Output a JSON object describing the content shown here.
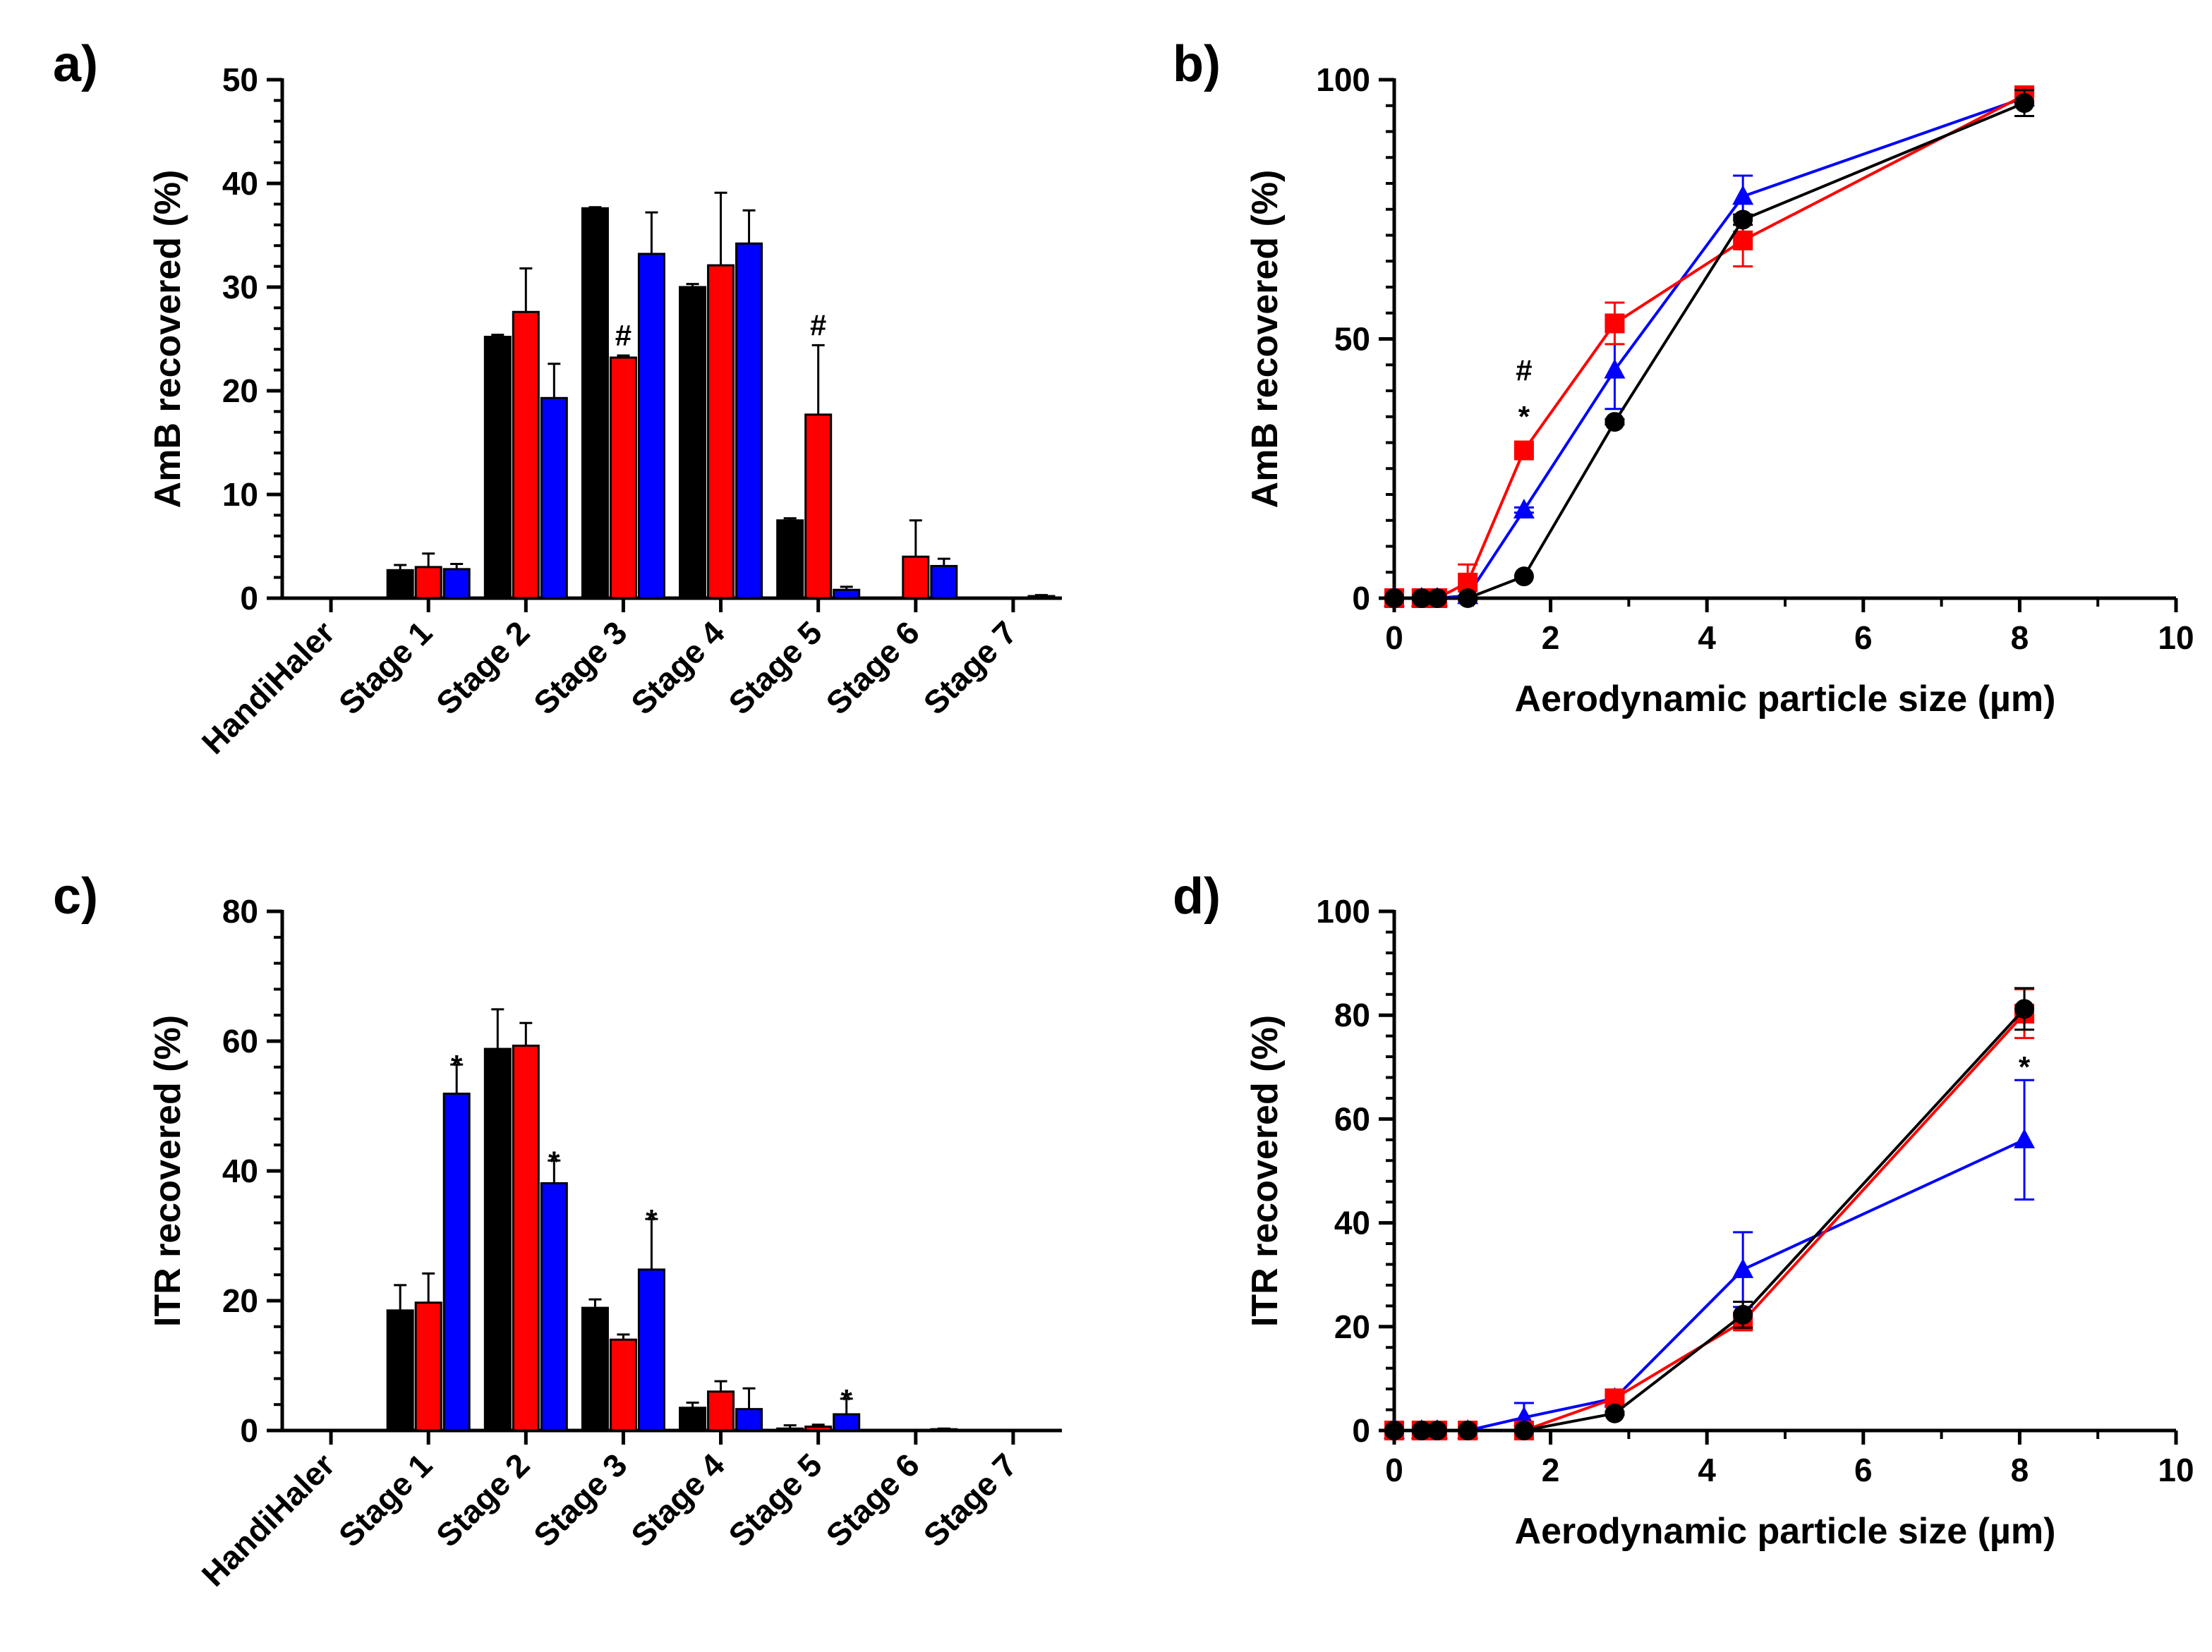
{
  "colors": {
    "series1": "#000000",
    "series2": "#ff0000",
    "series3": "#0000ff"
  },
  "chart_data": [
    {
      "panel": "a)",
      "type": "bar",
      "xlabel": "",
      "ylabel": "AmB recovered (%)",
      "ylim": [
        0,
        50
      ],
      "yticks": [
        0,
        10,
        20,
        30,
        40,
        50
      ],
      "categories": [
        "HandiHaler",
        "Stage 1",
        "Stage 2",
        "Stage 3",
        "Stage 4",
        "Stage 5",
        "Stage 6",
        "Stage 7"
      ],
      "series": [
        {
          "name": "black",
          "color": "#000000",
          "values": [
            0,
            2.7,
            25.2,
            37.6,
            30.0,
            7.5,
            0,
            0
          ],
          "errors": [
            0,
            0.5,
            0.2,
            0.1,
            0.3,
            0.2,
            0,
            0
          ]
        },
        {
          "name": "red",
          "color": "#ff0000",
          "values": [
            0,
            3.0,
            27.6,
            23.2,
            32.1,
            17.7,
            4.0,
            0
          ],
          "errors": [
            0,
            1.3,
            4.2,
            0.2,
            7.0,
            6.7,
            3.5,
            0
          ]
        },
        {
          "name": "blue",
          "color": "#0000ff",
          "values": [
            0,
            2.8,
            19.3,
            33.2,
            34.2,
            0.8,
            3.1,
            0.2
          ],
          "errors": [
            0,
            0.5,
            3.3,
            4.0,
            3.2,
            0.3,
            0.7,
            0.1
          ]
        }
      ],
      "annotations": [
        {
          "category": "Stage 3",
          "series": 1,
          "text": "#"
        },
        {
          "category": "Stage 5",
          "series": 1,
          "text": "#"
        }
      ]
    },
    {
      "panel": "b)",
      "type": "line",
      "xlabel": "Aerodynamic particle size (µm)",
      "ylabel": "AmB recovered (%)",
      "xlim": [
        0,
        10
      ],
      "ylim": [
        0,
        100
      ],
      "xticks": [
        0,
        2,
        4,
        6,
        8,
        10
      ],
      "yticks": [
        0,
        50,
        100
      ],
      "series": [
        {
          "name": "black",
          "color": "#000000",
          "marker": "circle",
          "x": [
            0,
            0.35,
            0.55,
            0.94,
            1.66,
            2.82,
            4.46,
            8.06
          ],
          "y": [
            0,
            0,
            0,
            0,
            4.2,
            34,
            73,
            95.5
          ],
          "errors": [
            0,
            0,
            0,
            0,
            0,
            0.5,
            1,
            2.5
          ]
        },
        {
          "name": "red",
          "color": "#ff0000",
          "marker": "square",
          "x": [
            0,
            0.35,
            0.55,
            0.94,
            1.66,
            2.82,
            4.46,
            8.06
          ],
          "y": [
            0,
            0,
            0,
            3,
            28.5,
            53,
            69,
            97
          ],
          "errors": [
            0,
            0,
            0,
            3.5,
            1,
            4,
            5,
            1.2
          ]
        },
        {
          "name": "blue",
          "color": "#0000ff",
          "marker": "triangle",
          "x": [
            0,
            0.35,
            0.55,
            0.94,
            1.66,
            2.82,
            4.46,
            8.06
          ],
          "y": [
            0,
            0,
            0,
            0.5,
            17,
            44,
            77.5,
            96.5
          ],
          "errors": [
            0,
            0,
            0,
            0,
            0.5,
            7.5,
            4,
            0.8
          ]
        }
      ],
      "annotations": [
        {
          "x": 1.66,
          "y": 42,
          "text": "#"
        },
        {
          "x": 1.66,
          "y": 35,
          "text": "*"
        }
      ]
    },
    {
      "panel": "c)",
      "type": "bar",
      "xlabel": "",
      "ylabel": "ITR recovered (%)",
      "ylim": [
        0,
        80
      ],
      "yticks": [
        0,
        20,
        40,
        60,
        80
      ],
      "categories": [
        "HandiHaler",
        "Stage 1",
        "Stage 2",
        "Stage 3",
        "Stage 4",
        "Stage 5",
        "Stage 6",
        "Stage 7"
      ],
      "series": [
        {
          "name": "black",
          "color": "#000000",
          "values": [
            0,
            18.5,
            58.8,
            18.9,
            3.5,
            0.3,
            0,
            0
          ],
          "errors": [
            0,
            3.9,
            6.1,
            1.3,
            0.8,
            0.5,
            0,
            0
          ]
        },
        {
          "name": "red",
          "color": "#ff0000",
          "values": [
            0,
            19.7,
            59.3,
            14.0,
            6.0,
            0.6,
            0,
            0
          ],
          "errors": [
            0,
            4.5,
            3.5,
            0.8,
            1.6,
            0.3,
            0,
            0
          ]
        },
        {
          "name": "blue",
          "color": "#0000ff",
          "values": [
            0,
            51.9,
            38.1,
            24.8,
            3.3,
            2.5,
            0.2,
            0
          ],
          "errors": [
            0,
            4.5,
            3.5,
            7.8,
            3.2,
            2.4,
            0.1,
            0
          ]
        }
      ],
      "annotations": [
        {
          "category": "Stage 1",
          "series": 2,
          "text": "*"
        },
        {
          "category": "Stage 2",
          "series": 2,
          "text": "*"
        },
        {
          "category": "Stage 3",
          "series": 2,
          "text": "*"
        },
        {
          "category": "Stage 5",
          "series": 2,
          "text": "*"
        }
      ]
    },
    {
      "panel": "d)",
      "type": "line",
      "xlabel": "Aerodynamic particle size (µm)",
      "ylabel": "ITR recovered (%)",
      "xlim": [
        0,
        10
      ],
      "ylim": [
        0,
        100
      ],
      "xticks": [
        0,
        2,
        4,
        6,
        8,
        10
      ],
      "yticks": [
        0,
        20,
        40,
        60,
        80,
        100
      ],
      "series": [
        {
          "name": "black",
          "color": "#000000",
          "marker": "circle",
          "x": [
            0,
            0.35,
            0.55,
            0.94,
            1.66,
            2.82,
            4.46,
            8.06
          ],
          "y": [
            0,
            0,
            0,
            0,
            0,
            3.3,
            22.3,
            81.2
          ],
          "errors": [
            0,
            0,
            0,
            0,
            0,
            0.3,
            2.5,
            4
          ]
        },
        {
          "name": "red",
          "color": "#ff0000",
          "marker": "square",
          "x": [
            0,
            0.35,
            0.55,
            0.94,
            1.66,
            2.82,
            4.46,
            8.06
          ],
          "y": [
            0,
            0,
            0,
            0,
            0,
            6.2,
            21,
            80.3
          ],
          "errors": [
            0,
            0,
            0,
            0,
            0,
            0.5,
            1.5,
            4.7
          ]
        },
        {
          "name": "blue",
          "color": "#0000ff",
          "marker": "triangle",
          "x": [
            0,
            0.35,
            0.55,
            0.94,
            1.66,
            2.82,
            4.46,
            8.06
          ],
          "y": [
            0,
            0,
            0,
            0,
            2.5,
            6.2,
            31,
            56
          ],
          "errors": [
            0,
            0,
            0,
            0,
            2.8,
            0.5,
            7.2,
            11.5
          ]
        }
      ],
      "annotations": [
        {
          "x": 8.06,
          "y": 70,
          "text": "*"
        }
      ]
    }
  ]
}
